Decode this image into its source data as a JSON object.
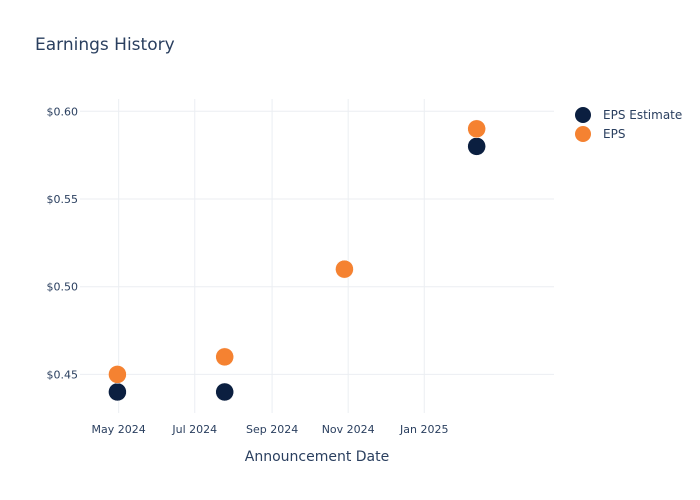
{
  "chart_data": {
    "type": "scatter",
    "title": "Earnings History",
    "xlabel": "Announcement Date",
    "ylabel": "",
    "x_axis_type": "date",
    "xlim": [
      "2024-03-31",
      "2025-04-15"
    ],
    "x_ticks": [
      {
        "date": "2024-05-01",
        "label": "May 2024"
      },
      {
        "date": "2024-07-01",
        "label": "Jul 2024"
      },
      {
        "date": "2024-09-01",
        "label": "Sep 2024"
      },
      {
        "date": "2024-11-01",
        "label": "Nov 2024"
      },
      {
        "date": "2025-01-01",
        "label": "Jan 2025"
      }
    ],
    "ylim": [
      0.428,
      0.607
    ],
    "y_ticks": [
      {
        "value": 0.45,
        "label": "$0.45"
      },
      {
        "value": 0.5,
        "label": "$0.50"
      },
      {
        "value": 0.55,
        "label": "$0.55"
      },
      {
        "value": 0.6,
        "label": "$0.60"
      }
    ],
    "grid": true,
    "legend_position": "top-right",
    "series": [
      {
        "name": "EPS Estimate",
        "color": "#0b1f40",
        "points": [
          {
            "x": "2024-04-30",
            "y": 0.44
          },
          {
            "x": "2024-07-25",
            "y": 0.44
          },
          {
            "x": "2024-10-29",
            "y": 0.51
          },
          {
            "x": "2025-02-12",
            "y": 0.58
          }
        ]
      },
      {
        "name": "EPS",
        "color": "#f58231",
        "points": [
          {
            "x": "2024-04-30",
            "y": 0.45
          },
          {
            "x": "2024-07-25",
            "y": 0.46
          },
          {
            "x": "2024-10-29",
            "y": 0.51
          },
          {
            "x": "2025-02-12",
            "y": 0.59
          }
        ]
      }
    ]
  }
}
